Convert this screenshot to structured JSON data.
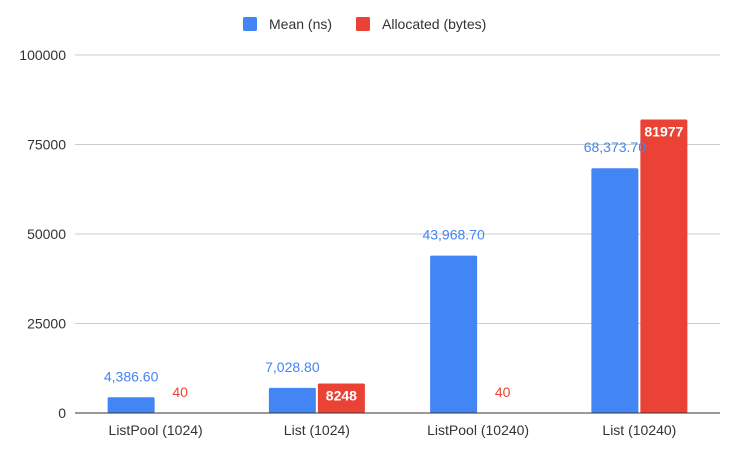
{
  "chart_data": {
    "type": "bar",
    "categories": [
      "ListPool (1024)",
      "List (1024)",
      "ListPool (10240)",
      "List (10240)"
    ],
    "series": [
      {
        "name": "Mean (ns)",
        "color": "#4285f4",
        "values": [
          4386.6,
          7028.8,
          43968.7,
          68373.7
        ],
        "labels": [
          "4,386.60",
          "7,028.80",
          "43,968.70",
          "68,373.70"
        ]
      },
      {
        "name": "Allocated (bytes)",
        "color": "#ea4335",
        "values": [
          40,
          8248,
          40,
          81977
        ],
        "labels": [
          "40",
          "8248",
          "40",
          "81977"
        ]
      }
    ],
    "ylim": [
      0,
      100000
    ],
    "yticks": [
      0,
      25000,
      50000,
      75000,
      100000
    ],
    "ytick_labels": [
      "0",
      "25000",
      "50000",
      "75000",
      "100000"
    ],
    "grid": true,
    "legend_position": "top"
  }
}
